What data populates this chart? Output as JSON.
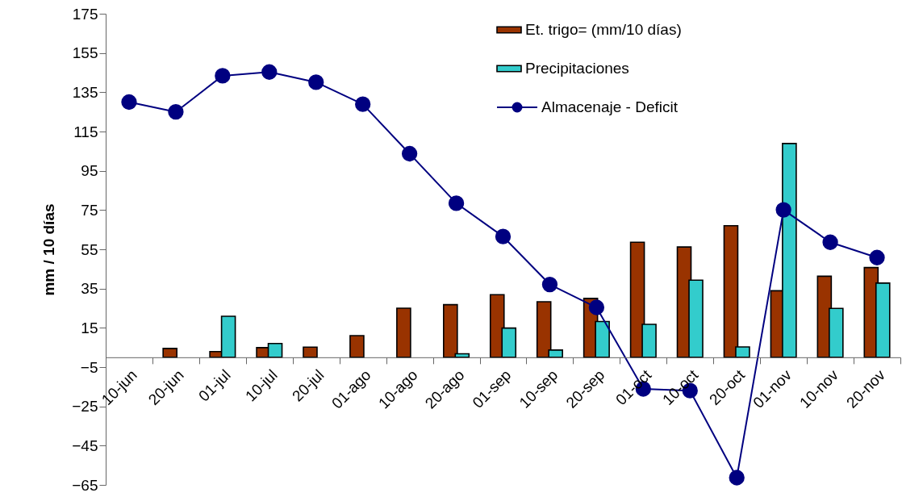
{
  "chart_data": {
    "type": "bar",
    "ylabel": "mm / 10 días",
    "categories": [
      "10-jun",
      "20-jun",
      "01-jul",
      "10-jul",
      "20-jul",
      "01-ago",
      "10-ago",
      "20-ago",
      "01-sep",
      "10-sep",
      "20-sep",
      "01-oct",
      "10-oct",
      "20-oct",
      "01-nov",
      "10-nov",
      "20-nov"
    ],
    "series": [
      {
        "name": "Et. trigo= (mm/10 días)",
        "color": "#993300",
        "values": [
          null,
          4.5,
          2.9,
          4.9,
          5.2,
          11,
          25,
          26.8,
          31.9,
          28.3,
          30,
          58.6,
          56.2,
          67,
          33.9,
          41.3,
          45.7
        ]
      },
      {
        "name": "Precipitaciones",
        "color": "#33cccc",
        "values": [
          null,
          null,
          20.9,
          7,
          null,
          null,
          null,
          1.8,
          14.9,
          3.7,
          18.2,
          16.8,
          39.3,
          5.3,
          108.9,
          24.9,
          37.8
        ]
      },
      {
        "name": "Almacenaje - Deficit",
        "type": "line",
        "color": "#000080",
        "values": [
          130,
          125,
          143.4,
          145.3,
          140.1,
          128.9,
          103.7,
          78.5,
          61.5,
          37.1,
          25.4,
          -16.1,
          -17,
          -61.3,
          75.1,
          58.6,
          50.8
        ]
      }
    ],
    "ylim": [
      -65,
      175
    ],
    "yticks": [
      -65,
      -45,
      -25,
      -5,
      15,
      35,
      55,
      75,
      95,
      115,
      135,
      155,
      175
    ],
    "legend": "top right",
    "marker": "circle"
  }
}
